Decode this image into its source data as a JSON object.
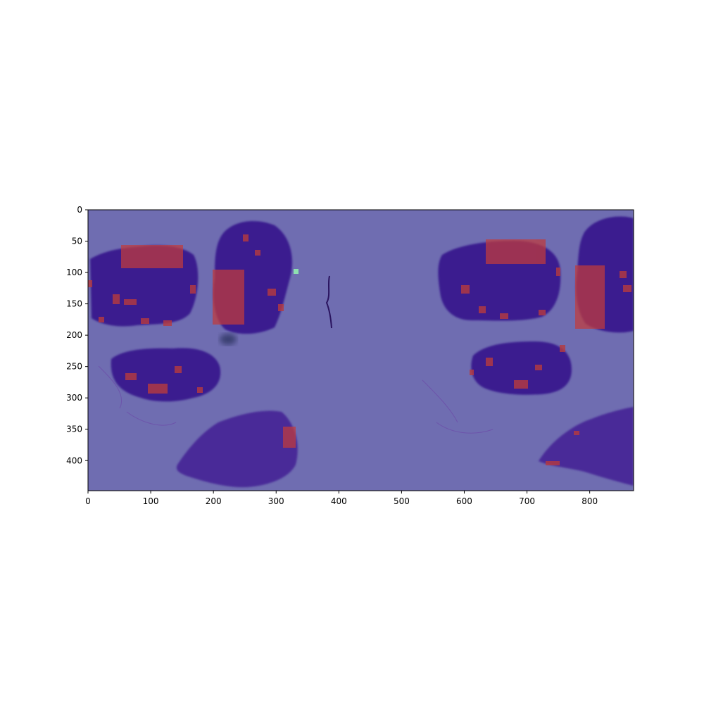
{
  "figure": {
    "type": "image-with-heatmap-overlay",
    "image_description_colors": {
      "background_overlay": "#6f6db1",
      "tissue": "#3a1f8f",
      "tissue_edge": "#6c4aa8",
      "hotspot": "#c23b3b",
      "hotspot_strong": "#b8474a",
      "marker": "#8ee0b0"
    },
    "x_axis": {
      "ticks": [
        "0",
        "100",
        "200",
        "300",
        "400",
        "500",
        "600",
        "700",
        "800"
      ],
      "range": [
        0,
        870
      ]
    },
    "y_axis": {
      "ticks": [
        "0",
        "50",
        "100",
        "150",
        "200",
        "250",
        "300",
        "350",
        "400"
      ],
      "range": [
        0,
        448
      ],
      "inverted": true
    }
  }
}
